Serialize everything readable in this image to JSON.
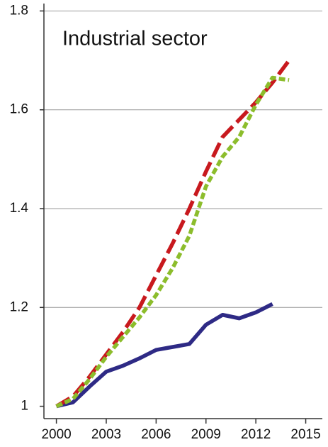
{
  "chart_data": {
    "type": "line",
    "title": "Industrial sector",
    "x": [
      2000,
      2001,
      2002,
      2003,
      2004,
      2005,
      2006,
      2007,
      2008,
      2009,
      2010,
      2011,
      2012,
      2013,
      2014
    ],
    "series": [
      {
        "color": "#2e2a85",
        "dash": "solid",
        "values": [
          1.0,
          1.008,
          1.04,
          1.07,
          1.082,
          1.097,
          1.114,
          1.12,
          1.126,
          1.165,
          1.185,
          1.178,
          1.19,
          1.207,
          null
        ]
      },
      {
        "color": "#c8191e",
        "dash": "dashed",
        "values": [
          1.0,
          1.02,
          1.06,
          1.105,
          1.15,
          1.2,
          1.265,
          1.33,
          1.4,
          1.475,
          1.545,
          1.58,
          1.615,
          1.655,
          1.7
        ]
      },
      {
        "color": "#8cbd2c",
        "dash": "dotted",
        "values": [
          1.0,
          1.015,
          1.055,
          1.1,
          1.14,
          1.18,
          1.225,
          1.28,
          1.345,
          1.445,
          1.505,
          1.545,
          1.61,
          1.665,
          1.66
        ]
      }
    ],
    "xlim": [
      1999.25,
      2016
    ],
    "xticks": [
      2000,
      2003,
      2006,
      2009,
      2012,
      2015
    ],
    "ylim": [
      0.975,
      1.815
    ],
    "yticks": [
      1,
      1.2,
      1.4,
      1.6,
      1.8
    ],
    "grid": true
  }
}
